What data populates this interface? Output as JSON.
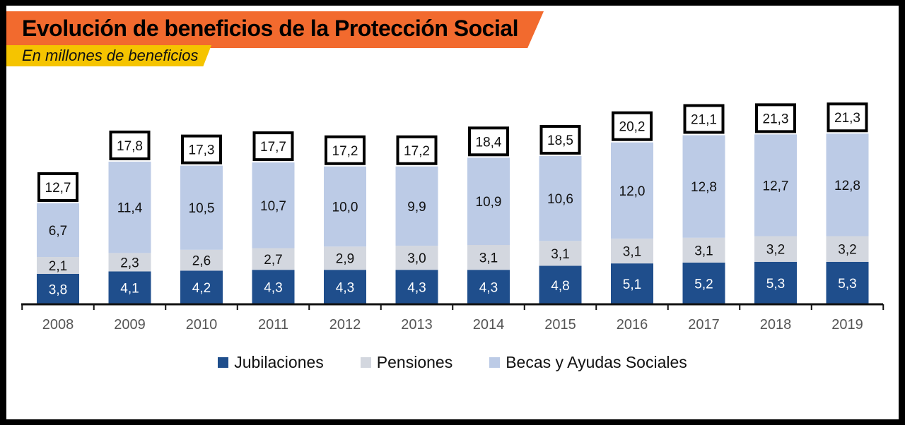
{
  "header": {
    "title": "Evolución de beneficios de la Protección Social",
    "subtitle": "En millones de beneficios"
  },
  "colors": {
    "jubilaciones": "#1f4e8c",
    "pensiones": "#d3d7df",
    "becas": "#bccbe6",
    "title_band": "#f26a2e",
    "subtitle_band": "#f5c400"
  },
  "chart_data": {
    "type": "bar",
    "stacked": true,
    "categories": [
      "2008",
      "2009",
      "2010",
      "2011",
      "2012",
      "2013",
      "2014",
      "2015",
      "2016",
      "2017",
      "2018",
      "2019"
    ],
    "series": [
      {
        "name": "Jubilaciones",
        "values": [
          "3,8",
          "4,1",
          "4,2",
          "4,3",
          "4,3",
          "4,3",
          "4,3",
          "4,8",
          "5,1",
          "5,2",
          "5,3",
          "5,3"
        ]
      },
      {
        "name": "Pensiones",
        "values": [
          "2,1",
          "2,3",
          "2,6",
          "2,7",
          "2,9",
          "3,0",
          "3,1",
          "3,1",
          "3,1",
          "3,1",
          "3,2",
          "3,2"
        ]
      },
      {
        "name": "Becas y Ayudas Sociales",
        "values": [
          "6,7",
          "11,4",
          "10,5",
          "10,7",
          "10,0",
          "9,9",
          "10,9",
          "10,6",
          "12,0",
          "12,8",
          "12,7",
          "12,8"
        ]
      }
    ],
    "totals": [
      "12,7",
      "17,8",
      "17,3",
      "17,7",
      "17,2",
      "17,2",
      "18,4",
      "18,5",
      "20,2",
      "21,1",
      "21,3",
      "21,3"
    ],
    "legend_position": "bottom",
    "grid": false
  }
}
